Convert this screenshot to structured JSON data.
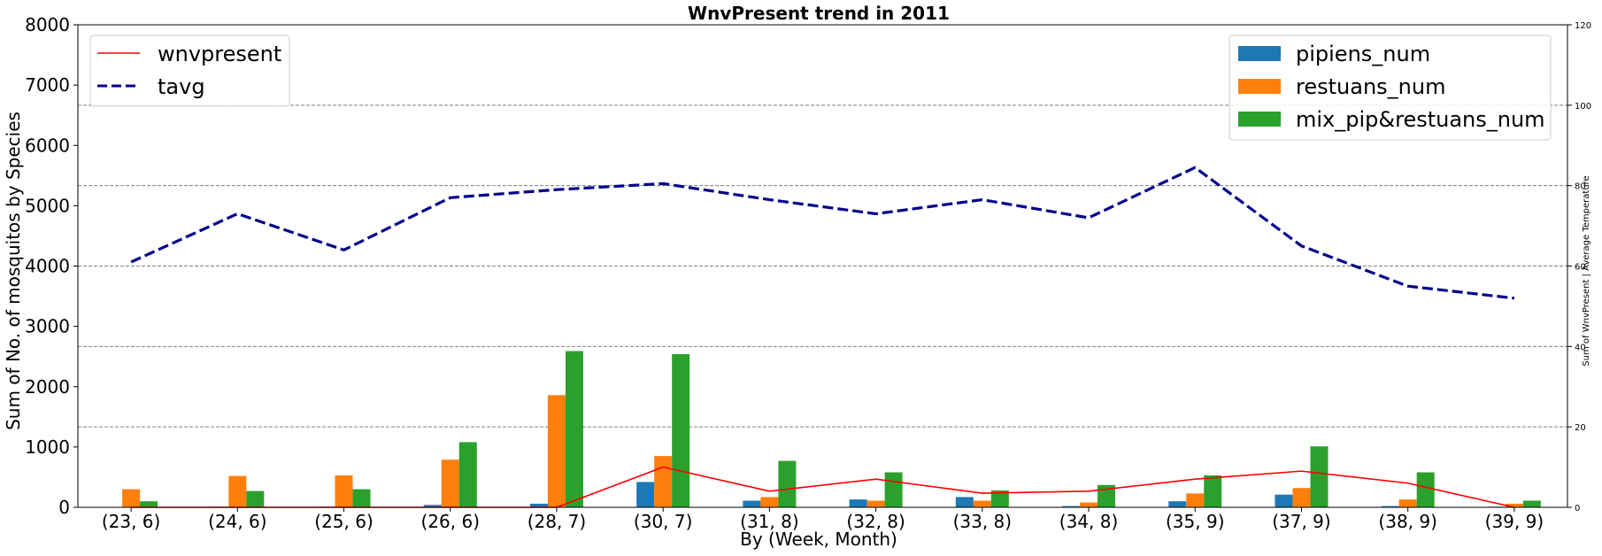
{
  "chart_data": {
    "type": "bar+line",
    "title": "WnvPresent trend in 2011",
    "xlabel": "By (Week, Month)",
    "ylabel_left": "Sum of No. of mosquitos by Species",
    "ylabel_right": "Sum of WnvPresent | Average Temperature",
    "categories": [
      "(23, 6)",
      "(24, 6)",
      "(25, 6)",
      "(26, 6)",
      "(28, 7)",
      "(30, 7)",
      "(31, 8)",
      "(32, 8)",
      "(33, 8)",
      "(34, 8)",
      "(35, 9)",
      "(37, 9)",
      "(38, 9)",
      "(39, 9)"
    ],
    "ylim_left": [
      0,
      8000
    ],
    "yticks_left": [
      0,
      1000,
      2000,
      3000,
      4000,
      5000,
      6000,
      7000,
      8000
    ],
    "ylim_right": [
      0,
      120
    ],
    "yticks_right": [
      0,
      20,
      40,
      60,
      80,
      100,
      120
    ],
    "grid": "horizontal dashed (right axis)",
    "bar_series": [
      {
        "name": "pipiens_num",
        "color": "#1f77b4",
        "values": [
          5,
          10,
          10,
          40,
          60,
          420,
          110,
          130,
          170,
          20,
          100,
          210,
          20,
          10
        ]
      },
      {
        "name": "restuans_num",
        "color": "#ff7f0e",
        "values": [
          300,
          520,
          530,
          790,
          1860,
          850,
          170,
          110,
          110,
          80,
          230,
          320,
          130,
          60
        ]
      },
      {
        "name": "mix_pip&restuans_num",
        "color": "#2ca02c",
        "values": [
          100,
          270,
          300,
          1080,
          2590,
          2540,
          770,
          580,
          280,
          370,
          530,
          1010,
          580,
          110
        ]
      }
    ],
    "line_series": [
      {
        "name": "wnvpresent",
        "color": "#ff0000",
        "style": "solid",
        "values": [
          0,
          0,
          0,
          0,
          0,
          10,
          4,
          7,
          3.5,
          4,
          7,
          9,
          6,
          0
        ]
      },
      {
        "name": "tavg",
        "color": "#00008b",
        "style": "dashed",
        "values": [
          61,
          73,
          64,
          77,
          79,
          80.5,
          76.5,
          73,
          76.5,
          72,
          84.5,
          65,
          55,
          52
        ]
      }
    ],
    "legend_left_placement": "top-left",
    "legend_right_placement": "top-right"
  }
}
